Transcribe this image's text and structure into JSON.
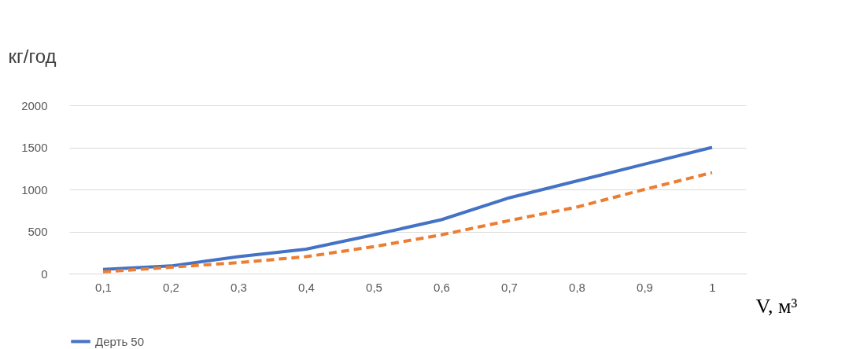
{
  "chart_data": {
    "type": "line",
    "ylabel": "кг/год",
    "xlabel": "V, м³",
    "categories": [
      "0,1",
      "0,2",
      "0,3",
      "0,4",
      "0,5",
      "0,6",
      "0,7",
      "0,8",
      "0,9",
      "1"
    ],
    "series": [
      {
        "name": "Дерть 50",
        "color": "#4472c4",
        "line_style": "solid",
        "values": [
          50,
          90,
          200,
          290,
          460,
          640,
          900,
          1100,
          1300,
          1500
        ]
      },
      {
        "color": "#ed7d31",
        "line_style": "dashed",
        "values": [
          20,
          75,
          130,
          200,
          320,
          460,
          630,
          790,
          1000,
          1200
        ]
      }
    ],
    "ylim": [
      0,
      2000
    ],
    "yticks": [
      0,
      500,
      1000,
      1500,
      2000
    ],
    "grid": "y",
    "legend": "bottom",
    "marker": "none"
  }
}
